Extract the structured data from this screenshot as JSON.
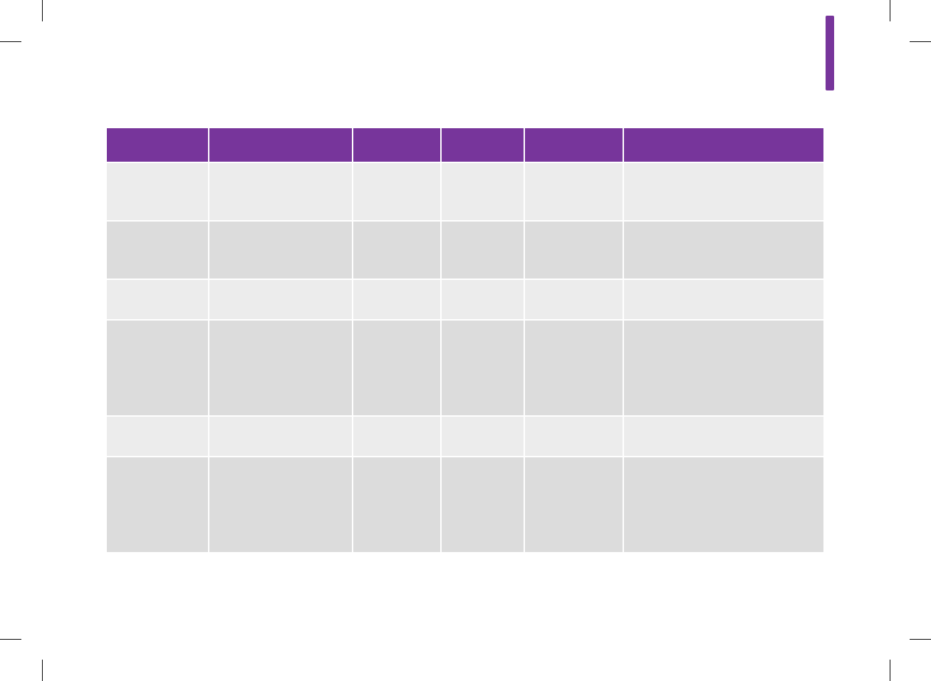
{
  "colors": {
    "accent": "#77359B",
    "row_light": "#ECECEC",
    "row_dark": "#DCDCDC",
    "crop_marks": "#000000"
  },
  "table": {
    "columns": [
      "",
      "",
      "",
      "",
      "",
      ""
    ],
    "rows": [
      {
        "shade": "light",
        "cells": [
          "",
          "",
          "",
          "",
          "",
          ""
        ]
      },
      {
        "shade": "dark",
        "cells": [
          "",
          "",
          "",
          "",
          "",
          ""
        ]
      },
      {
        "shade": "light",
        "cells": [
          "",
          "",
          "",
          "",
          "",
          ""
        ]
      },
      {
        "shade": "dark",
        "cells": [
          "",
          "",
          "",
          "",
          "",
          ""
        ]
      },
      {
        "shade": "light",
        "cells": [
          "",
          "",
          "",
          "",
          "",
          ""
        ]
      },
      {
        "shade": "dark",
        "cells": [
          "",
          "",
          "",
          "",
          "",
          ""
        ]
      }
    ]
  }
}
